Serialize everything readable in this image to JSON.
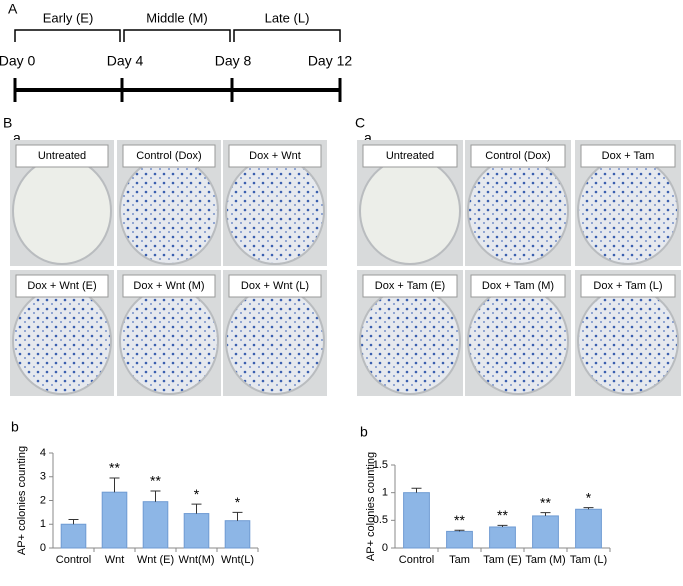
{
  "panel_letters": [
    "A",
    "B",
    "C"
  ],
  "sub_letters": {
    "Ba": "a",
    "Bb": "b",
    "Ca": "a",
    "Cb": "b"
  },
  "timeline": {
    "phases": [
      "Early (E)",
      "Middle (M)",
      "Late (L)"
    ],
    "days": [
      "Day 0",
      "Day 4",
      "Day 8",
      "Day 12"
    ]
  },
  "photos_B": [
    "Untreated",
    "Control (Dox)",
    "Dox + Wnt",
    "Dox + Wnt (E)",
    "Dox + Wnt (M)",
    "Dox + Wnt (L)"
  ],
  "photos_C": [
    "Untreated",
    "Control (Dox)",
    "Dox + Tam",
    "Dox + Tam (E)",
    "Dox + Tam (M)",
    "Dox + Tam (L)"
  ],
  "chart_data": [
    {
      "type": "bar",
      "ylabel": "AP+ colonies counting",
      "categories": [
        "Control",
        "Wnt",
        "Wnt (E)",
        "Wnt(M)",
        "Wnt(L)"
      ],
      "values": [
        1.0,
        2.35,
        1.95,
        1.45,
        1.15
      ],
      "errors": [
        0.2,
        0.6,
        0.45,
        0.4,
        0.35
      ],
      "annotations": [
        null,
        "**",
        "**",
        "*",
        "*"
      ],
      "color": "#8db6e6",
      "ylim": [
        0,
        4
      ],
      "yticks": [
        0,
        1,
        2,
        3,
        4
      ]
    },
    {
      "type": "bar",
      "ylabel": "AP+ colonies counting",
      "categories": [
        "Control",
        "Tam",
        "Tam (E)",
        "Tam (M)",
        "Tam (L)"
      ],
      "values": [
        1.0,
        0.3,
        0.38,
        0.58,
        0.7
      ],
      "errors": [
        0.08,
        0.02,
        0.03,
        0.06,
        0.03
      ],
      "annotations": [
        null,
        "**",
        "**",
        "**",
        "*"
      ],
      "color": "#8db6e6",
      "ylim": [
        0,
        1.5
      ],
      "yticks": [
        0,
        0.5,
        1,
        1.5
      ]
    }
  ]
}
